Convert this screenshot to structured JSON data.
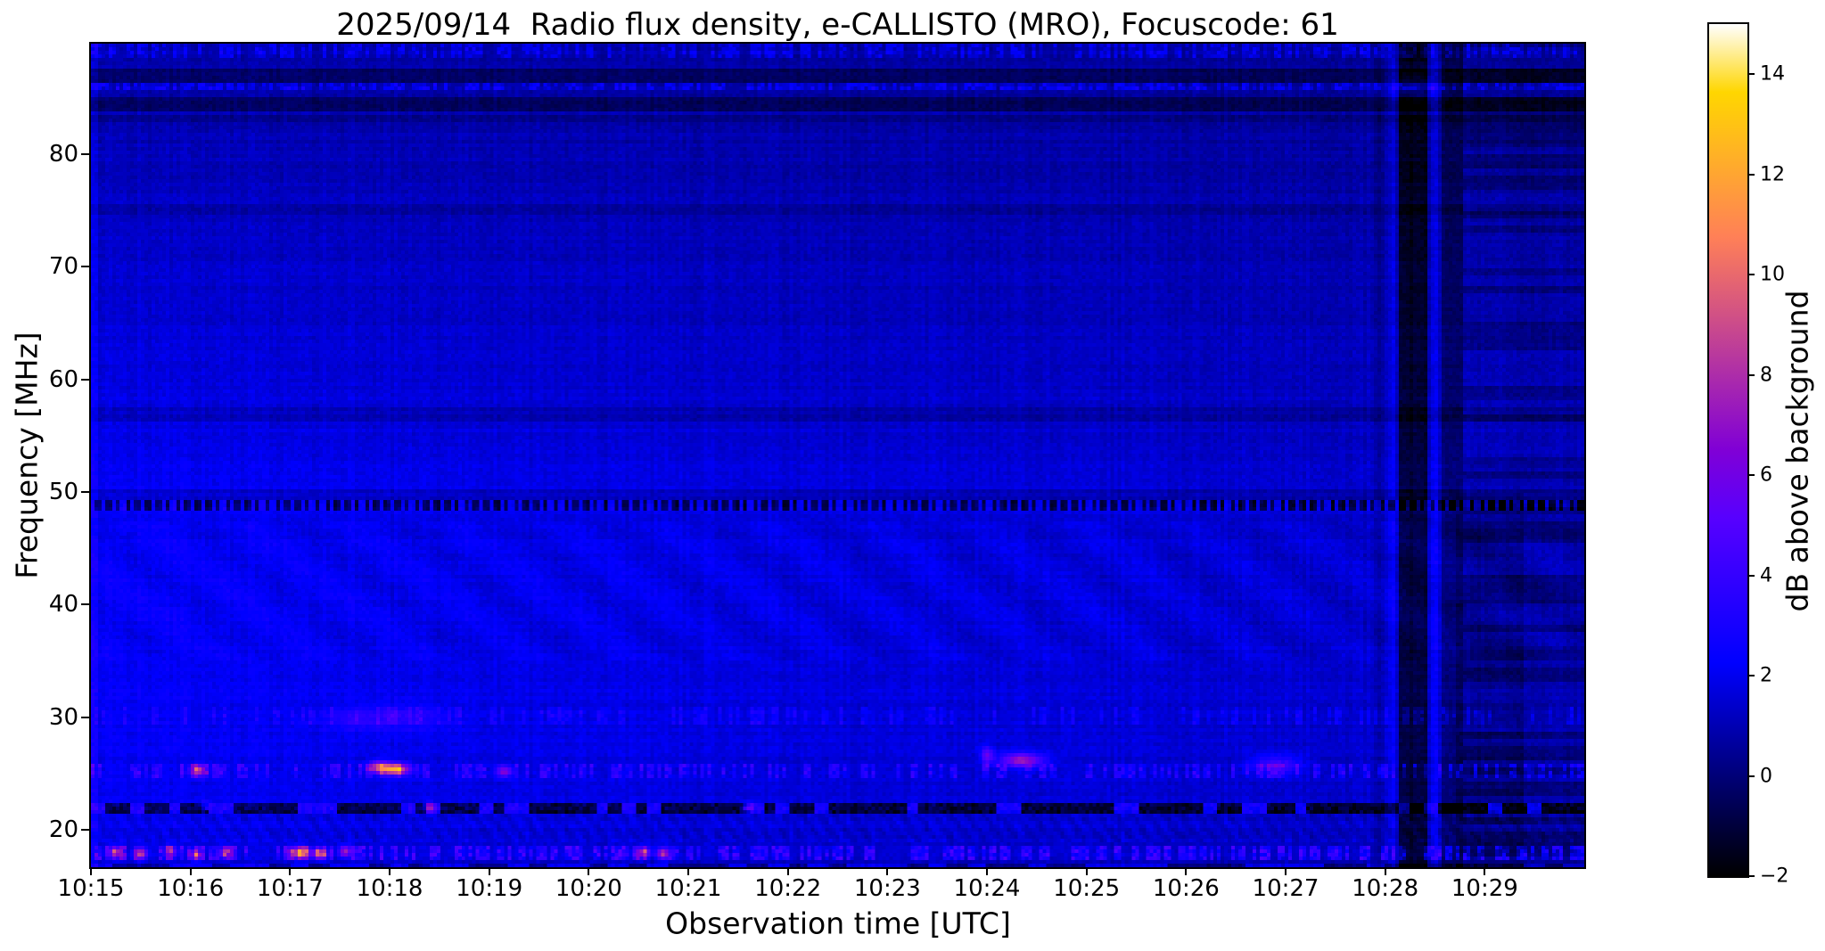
{
  "title": "2025/09/14  Radio flux density, e-CALLISTO (MRO), Focuscode: 61",
  "accent_colors": {
    "frame": "#000000",
    "background": "#ffffff"
  },
  "chart_data": {
    "type": "heatmap",
    "title": "2025/09/14  Radio flux density, e-CALLISTO (MRO), Focuscode: 61",
    "xlabel": "Observation time [UTC]",
    "ylabel": "Frequency [MHz]",
    "colorbar_label": "dB above background",
    "x_tick_labels": [
      "10:15",
      "10:16",
      "10:17",
      "10:18",
      "10:19",
      "10:20",
      "10:21",
      "10:22",
      "10:23",
      "10:24",
      "10:25",
      "10:26",
      "10:27",
      "10:28",
      "10:29"
    ],
    "x_tick_minutes": [
      0,
      1,
      2,
      3,
      4,
      5,
      6,
      7,
      8,
      9,
      10,
      11,
      12,
      13,
      14
    ],
    "x_range_minutes": [
      0,
      15
    ],
    "y_ticks_mhz": [
      20,
      30,
      40,
      50,
      60,
      70,
      80
    ],
    "ylim_mhz": [
      16.7,
      89.8
    ],
    "colorbar_ticks": [
      -2,
      0,
      2,
      4,
      6,
      8,
      10,
      12,
      14
    ],
    "clim_db": [
      -2,
      15
    ],
    "grid": false,
    "legend": "colorbar-right",
    "colormap": {
      "name": "gnuplot2",
      "stops": [
        [
          0.0,
          "#000000"
        ],
        [
          0.125,
          "#00007f"
        ],
        [
          0.25,
          "#0000ff"
        ],
        [
          0.35,
          "#3300ff"
        ],
        [
          0.42,
          "#5700ff"
        ],
        [
          0.5,
          "#8000d6"
        ],
        [
          0.6,
          "#b333a3"
        ],
        [
          0.7,
          "#e66670"
        ],
        [
          0.75,
          "#ff8057"
        ],
        [
          0.85,
          "#ffb324"
        ],
        [
          0.92,
          "#ffd600"
        ],
        [
          1.0,
          "#ffffff"
        ]
      ]
    },
    "heatmap_model": {
      "grid_cells": {
        "cols": 419,
        "rows": 231
      },
      "background": {
        "freq_profile_mhz_gain": [
          [
            16.4,
            1.45
          ],
          [
            18,
            1.6
          ],
          [
            22,
            1.75
          ],
          [
            28,
            1.85
          ],
          [
            36,
            1.95
          ],
          [
            46,
            1.9
          ],
          [
            52,
            1.75
          ],
          [
            58,
            1.55
          ],
          [
            64,
            1.4
          ],
          [
            70,
            1.25
          ],
          [
            76,
            1.05
          ],
          [
            81,
            0.9
          ],
          [
            85,
            0.82
          ],
          [
            89.8,
            0.88
          ]
        ],
        "time_profile_gain": [
          [
            0,
            1.18
          ],
          [
            1.5,
            1.1
          ],
          [
            4,
            1.0
          ],
          [
            7,
            0.92
          ],
          [
            10,
            0.85
          ],
          [
            12,
            0.8
          ],
          [
            13.8,
            0.72
          ],
          [
            15,
            0.66
          ]
        ],
        "noise_db": {
          "cell": 0.55,
          "col": 0.4,
          "row": 0.35
        }
      },
      "waves": [
        {
          "f": [
            35,
            47.5
          ],
          "t": [
            0,
            15
          ],
          "amp": 0.28,
          "kt": 6.0,
          "kf": 0.9
        },
        {
          "f": [
            18.8,
            21.5
          ],
          "t": [
            0,
            15
          ],
          "amp": 0.3,
          "kt": 38,
          "kf": 3.1
        }
      ],
      "h_bands": [
        {
          "f": [
            48.4,
            49.4
          ],
          "mode": "altdash",
          "period": 0.1,
          "duty": 0.45,
          "amp_bright": 0.7,
          "amp_dark": -2.6
        },
        {
          "f": [
            49.4,
            50.1
          ],
          "mode": "solid",
          "amp": -0.55
        },
        {
          "f": [
            21.6,
            22.4
          ],
          "mode": "dash",
          "period": 0.13,
          "p": 0.72,
          "amp_dark": -3.0,
          "amp_bright": 1.3
        },
        {
          "f": [
            17.2,
            18.7
          ],
          "mode": "speckle",
          "p": 0.55,
          "amp": 2.0
        },
        {
          "f": [
            16.4,
            17.0
          ],
          "mode": "dash",
          "period": 0.2,
          "p": 0.6,
          "amp_dark": -1.3,
          "amp_bright": 0.7
        },
        {
          "f": [
            24.7,
            25.9
          ],
          "mode": "speckle",
          "p": 0.42,
          "amp": 1.5
        },
        {
          "f": [
            29.2,
            30.8
          ],
          "mode": "speckle",
          "p": 0.3,
          "amp": 0.8
        },
        {
          "f": [
            86.4,
            87.6
          ],
          "mode": "solid",
          "amp": -1.1
        },
        {
          "f": [
            85.6,
            86.3
          ],
          "mode": "speckle",
          "p": 0.7,
          "amp": 1.1
        },
        {
          "f": [
            83.9,
            85.2
          ],
          "mode": "solid",
          "amp": -1.25
        },
        {
          "f": [
            82.7,
            83.5
          ],
          "mode": "solid",
          "amp": -0.7
        },
        {
          "f": [
            88.6,
            89.8
          ],
          "mode": "speckle",
          "p": 0.6,
          "amp": 1.0
        },
        {
          "f": [
            56.4,
            57.6
          ],
          "mode": "solid",
          "amp": -0.6
        },
        {
          "f": [
            74.6,
            75.6
          ],
          "mode": "solid",
          "amp": -0.5
        }
      ],
      "v_bands": [
        {
          "t": [
            0,
            0.07
          ],
          "f": [
            16.4,
            89.8
          ],
          "amp": 0.6
        },
        {
          "t": [
            12.88,
            12.98
          ],
          "f": [
            16.4,
            89.8
          ],
          "amp": -0.5
        },
        {
          "t": [
            13.02,
            13.1
          ],
          "f": [
            16.4,
            89.8
          ],
          "amp": 0.7
        },
        {
          "t": [
            13.14,
            13.44
          ],
          "f": [
            16.4,
            89.8
          ],
          "amp": -2.3
        },
        {
          "t": [
            13.46,
            13.54
          ],
          "f": [
            16.4,
            89.8
          ],
          "amp": 0.8
        },
        {
          "t": [
            13.56,
            13.78
          ],
          "f": [
            16.4,
            89.8
          ],
          "amp": -1.35
        }
      ],
      "regions": [
        {
          "t": [
            13.78,
            15
          ],
          "f": [
            16.4,
            52
          ],
          "amp": -0.6,
          "stripe_amp": 0.55
        },
        {
          "t": [
            13.78,
            15
          ],
          "f": [
            52,
            89.8
          ],
          "amp": -0.25,
          "stripe_amp": 0.5
        },
        {
          "t": [
            13.7,
            14.4
          ],
          "f": [
            16.4,
            50
          ],
          "amp": -0.45,
          "stripe_amp": 0.2
        }
      ],
      "spots": [
        {
          "t": 3.05,
          "f": 25.4,
          "dt": 0.14,
          "df": 0.5,
          "amp": 10
        },
        {
          "t": 2.88,
          "f": 25.6,
          "dt": 0.1,
          "df": 0.5,
          "amp": 6
        },
        {
          "t": 1.08,
          "f": 25.3,
          "dt": 0.08,
          "df": 0.5,
          "amp": 7
        },
        {
          "t": 4.15,
          "f": 25.2,
          "dt": 0.08,
          "df": 0.5,
          "amp": 5
        },
        {
          "t": 9.35,
          "f": 26.2,
          "dt": 0.22,
          "df": 0.6,
          "amp": 6
        },
        {
          "t": 9.0,
          "f": 26.6,
          "dt": 0.06,
          "df": 0.8,
          "amp": 4
        },
        {
          "t": 11.9,
          "f": 25.8,
          "dt": 0.25,
          "df": 0.8,
          "amp": 3
        },
        {
          "t": 3.1,
          "f": 30.0,
          "dt": 0.45,
          "df": 1.1,
          "amp": 1.6
        },
        {
          "t": 2.6,
          "f": 29.8,
          "dt": 0.3,
          "df": 0.9,
          "amp": 1.0
        },
        {
          "t": 13.3,
          "f": 86.0,
          "dt": 0.28,
          "df": 1.6,
          "amp": 1.8
        },
        {
          "t": 0.25,
          "f": 18.0,
          "dt": 0.07,
          "df": 0.5,
          "amp": 6
        },
        {
          "t": 0.5,
          "f": 17.9,
          "dt": 0.06,
          "df": 0.5,
          "amp": 7
        },
        {
          "t": 0.8,
          "f": 18.1,
          "dt": 0.06,
          "df": 0.5,
          "amp": 5
        },
        {
          "t": 1.05,
          "f": 17.8,
          "dt": 0.05,
          "df": 0.5,
          "amp": 6
        },
        {
          "t": 1.35,
          "f": 18.0,
          "dt": 0.06,
          "df": 0.5,
          "amp": 5
        },
        {
          "t": 2.1,
          "f": 18.0,
          "dt": 0.1,
          "df": 0.5,
          "amp": 8
        },
        {
          "t": 2.3,
          "f": 17.9,
          "dt": 0.07,
          "df": 0.5,
          "amp": 7
        },
        {
          "t": 2.55,
          "f": 18.1,
          "dt": 0.06,
          "df": 0.5,
          "amp": 6
        },
        {
          "t": 5.55,
          "f": 18.0,
          "dt": 0.07,
          "df": 0.5,
          "amp": 6
        },
        {
          "t": 5.75,
          "f": 17.9,
          "dt": 0.06,
          "df": 0.5,
          "amp": 7
        },
        {
          "t": 6.6,
          "f": 22.0,
          "dt": 0.05,
          "df": 0.4,
          "amp": 6
        },
        {
          "t": 3.4,
          "f": 22.0,
          "dt": 0.05,
          "df": 0.4,
          "amp": 5
        },
        {
          "t": 1.15,
          "f": 22.1,
          "dt": 0.04,
          "df": 0.4,
          "amp": 4
        }
      ]
    }
  }
}
